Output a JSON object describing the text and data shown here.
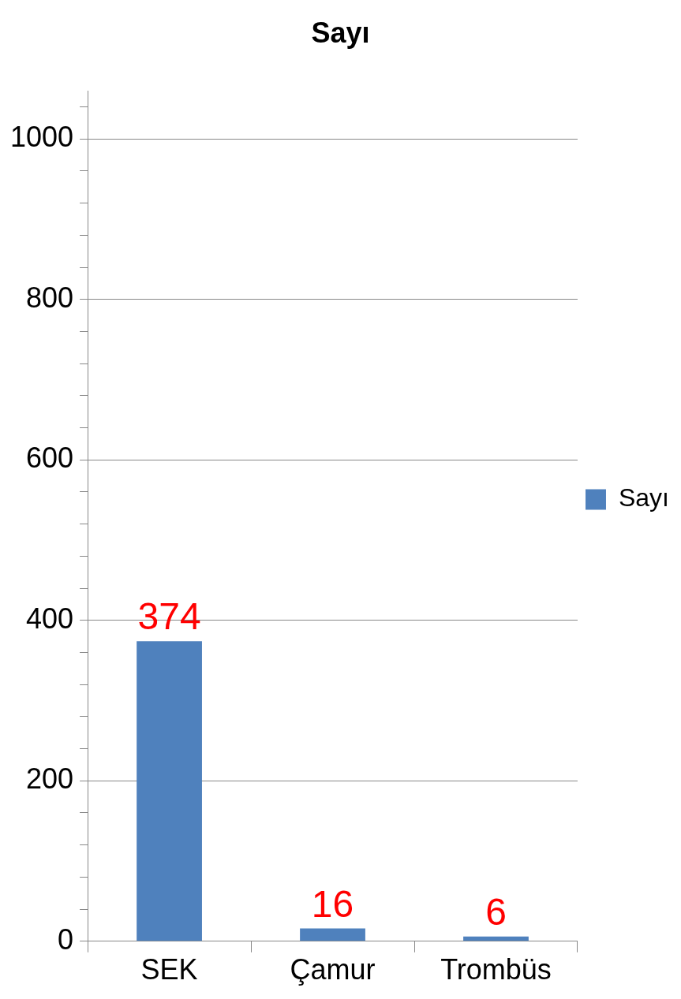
{
  "chart_data": {
    "type": "bar",
    "title": "Sayı",
    "categories": [
      "SEK",
      "Çamur",
      "Trombüs"
    ],
    "series": [
      {
        "name": "Sayı",
        "color": "#4f81bd",
        "values": [
          374,
          16,
          6
        ]
      }
    ],
    "ylim": [
      0,
      1060
    ],
    "yticks": [
      0,
      {
        "value": 40,
        "label": null
      },
      {
        "value": 80,
        "label": null
      },
      {
        "value": 120,
        "label": null
      },
      {
        "value": 160,
        "label": null
      },
      200,
      {
        "value": 240,
        "label": null
      },
      {
        "value": 280,
        "label": null
      },
      {
        "value": 320,
        "label": null
      },
      {
        "value": 360,
        "label": null
      },
      400,
      {
        "value": 440,
        "label": null
      },
      {
        "value": 480,
        "label": null
      },
      {
        "value": 520,
        "label": null
      },
      {
        "value": 560,
        "label": null
      },
      600,
      {
        "value": 640,
        "label": null
      },
      {
        "value": 680,
        "label": null
      },
      {
        "value": 720,
        "label": null
      },
      {
        "value": 760,
        "label": null
      },
      800,
      {
        "value": 840,
        "label": null
      },
      {
        "value": 880,
        "label": null
      },
      {
        "value": 920,
        "label": null
      },
      {
        "value": 960,
        "label": null
      },
      1000,
      {
        "value": 1040,
        "label": null
      }
    ],
    "grid": "y",
    "legend": "right",
    "data_labels": true
  }
}
